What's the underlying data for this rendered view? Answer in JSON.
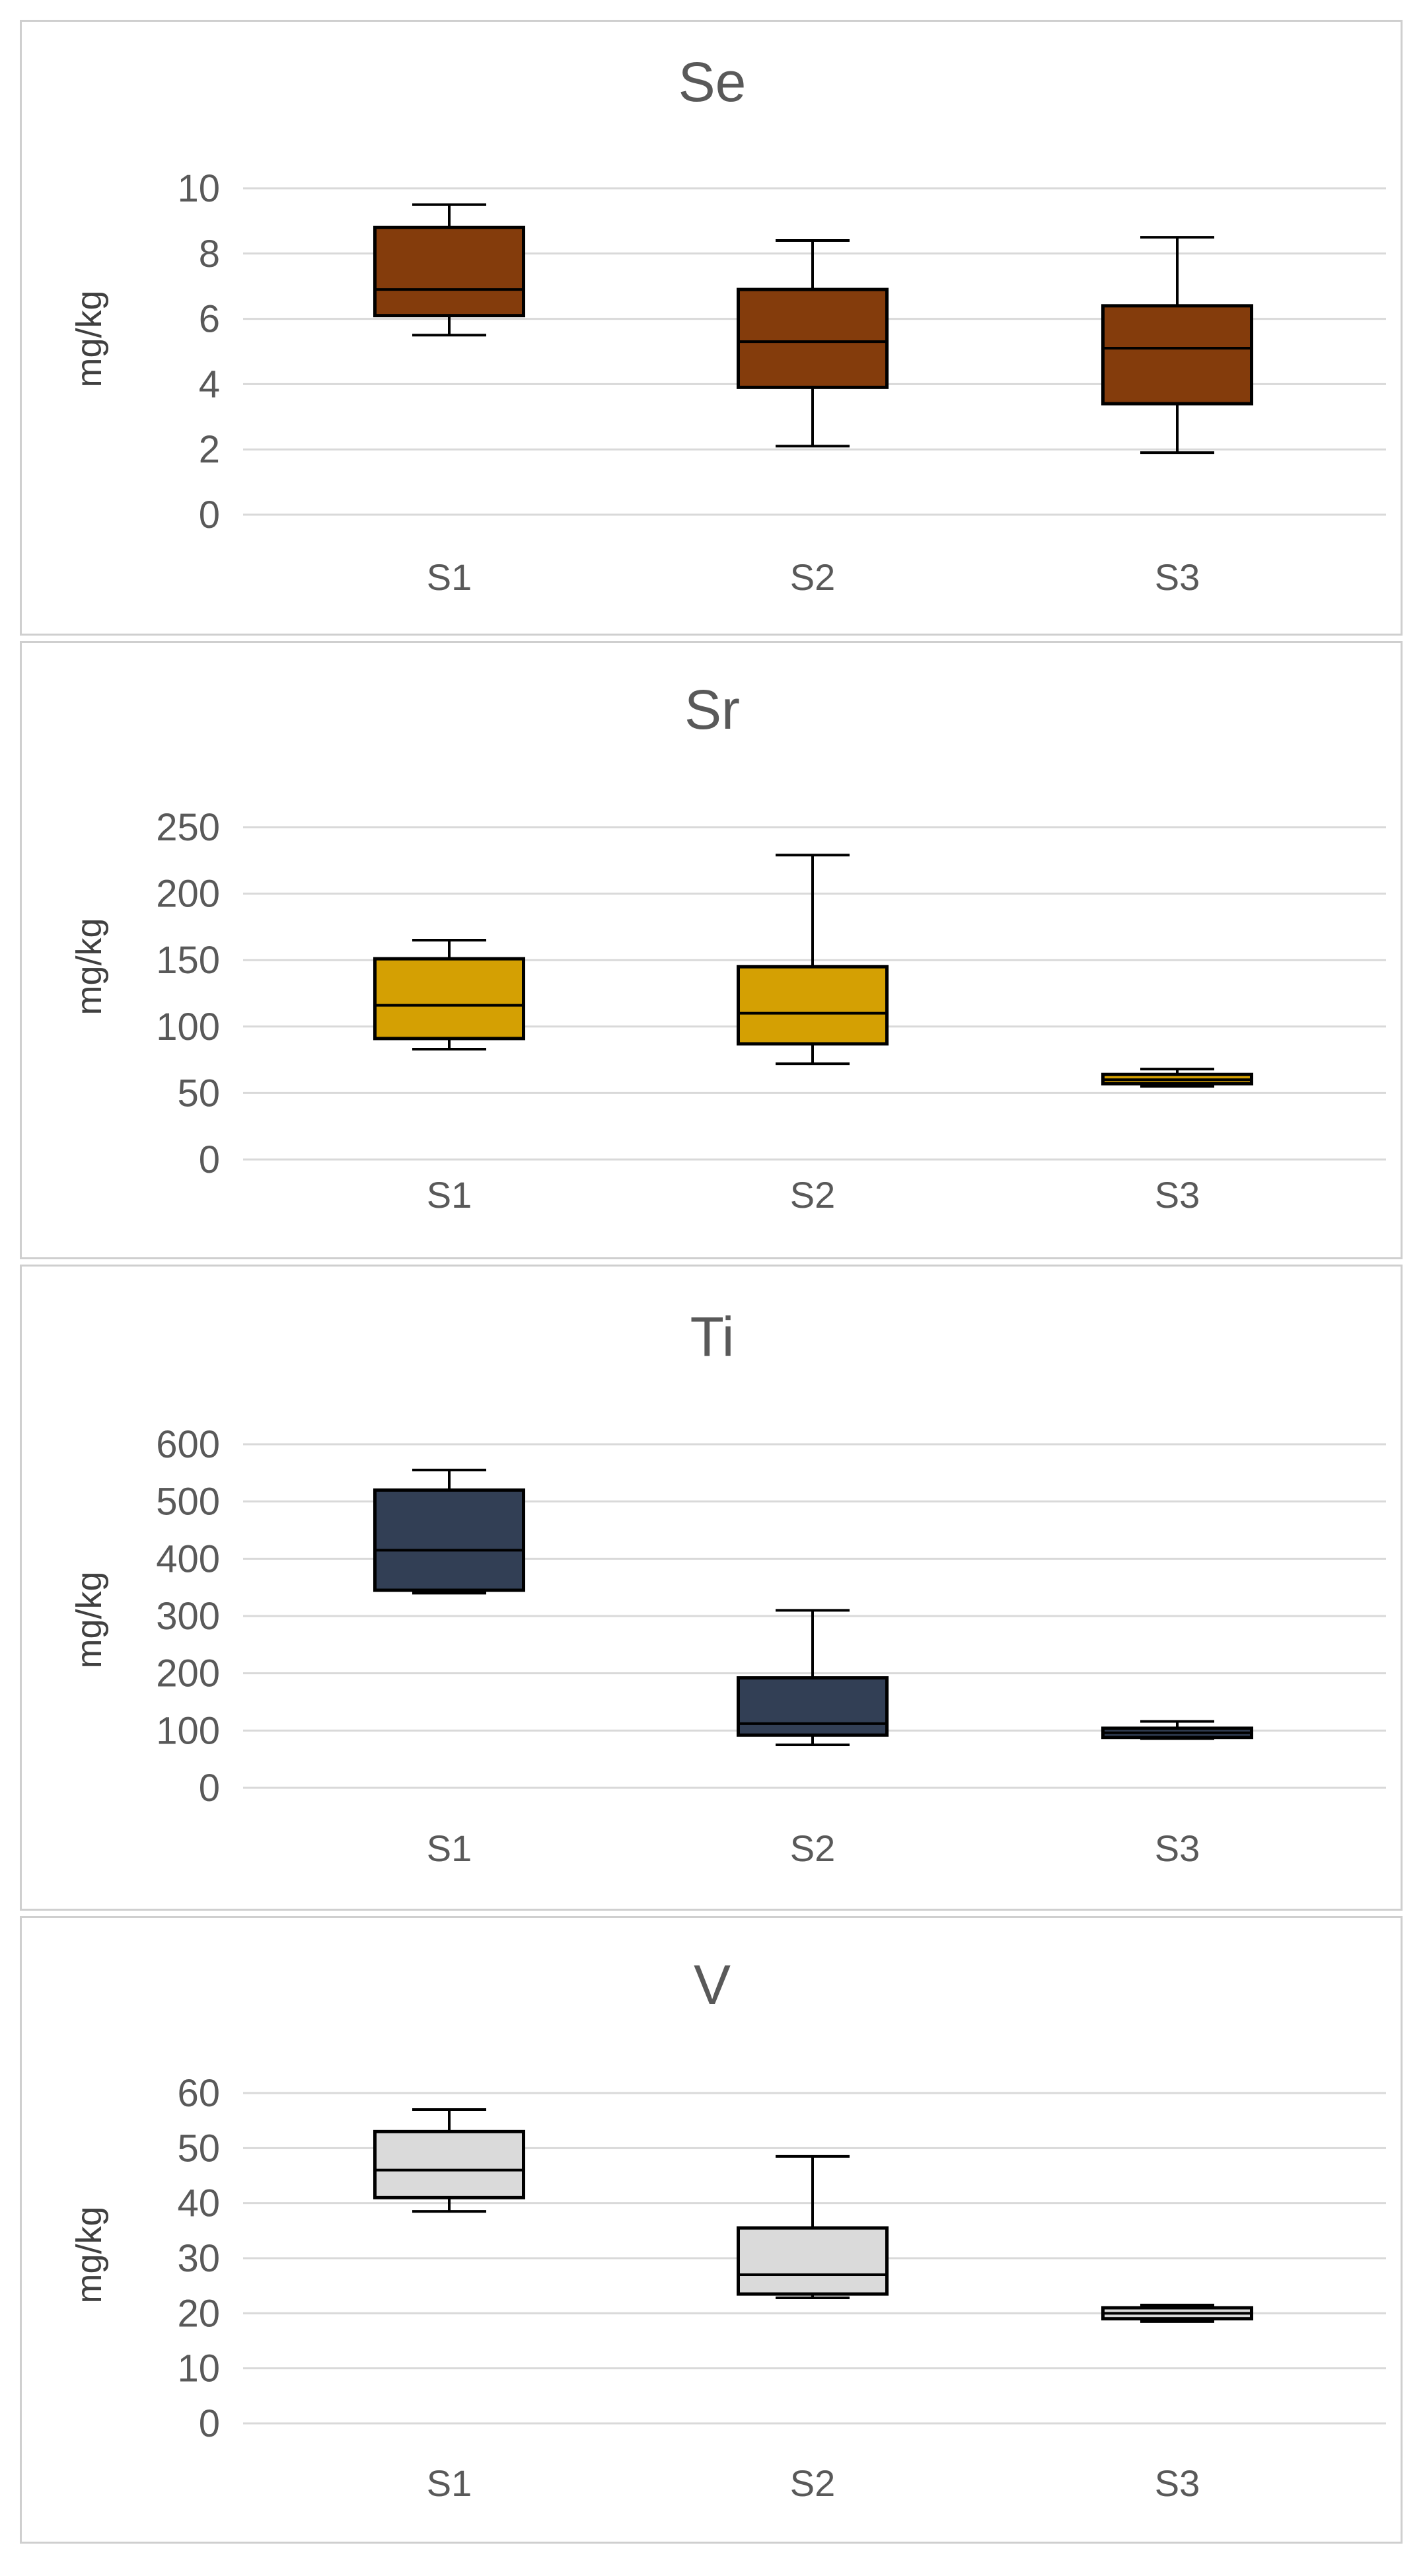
{
  "chart_data": [
    {
      "type": "boxplot",
      "title": "Se",
      "ylabel": "mg/kg",
      "ylim": [
        0,
        10
      ],
      "yticks": [
        "0",
        "2",
        "4",
        "6",
        "8",
        "10"
      ],
      "categories": [
        "S1",
        "S2",
        "S3"
      ],
      "color": "#843C0C",
      "boxes": [
        {
          "category": "S1",
          "min": 5.5,
          "q1": 6.1,
          "median": 6.9,
          "q3": 8.8,
          "max": 9.5
        },
        {
          "category": "S2",
          "min": 2.1,
          "q1": 3.9,
          "median": 5.3,
          "q3": 6.9,
          "max": 8.4
        },
        {
          "category": "S3",
          "min": 1.9,
          "q1": 3.4,
          "median": 5.1,
          "q3": 6.4,
          "max": 8.5
        }
      ],
      "grid": true
    },
    {
      "type": "boxplot",
      "title": "Sr",
      "ylabel": "mg/kg",
      "ylim": [
        0,
        250
      ],
      "yticks": [
        "0",
        "50",
        "100",
        "150",
        "200",
        "250"
      ],
      "categories": [
        "S1",
        "S2",
        "S3"
      ],
      "color": "#D4A003",
      "boxes": [
        {
          "category": "S1",
          "min": 83,
          "q1": 91,
          "median": 116,
          "q3": 151,
          "max": 165
        },
        {
          "category": "S2",
          "min": 72,
          "q1": 87,
          "median": 110,
          "q3": 145,
          "max": 229
        },
        {
          "category": "S3",
          "min": 55,
          "q1": 57,
          "median": 60,
          "q3": 64,
          "max": 68
        }
      ],
      "grid": true
    },
    {
      "type": "boxplot",
      "title": "Ti",
      "ylabel": "mg/kg",
      "ylim": [
        0,
        600
      ],
      "yticks": [
        "0",
        "100",
        "200",
        "300",
        "400",
        "500",
        "600"
      ],
      "categories": [
        "S1",
        "S2",
        "S3"
      ],
      "color": "#323F55",
      "boxes": [
        {
          "category": "S1",
          "min": 340,
          "q1": 345,
          "median": 415,
          "q3": 520,
          "max": 555
        },
        {
          "category": "S2",
          "min": 75,
          "q1": 92,
          "median": 112,
          "q3": 192,
          "max": 310
        },
        {
          "category": "S3",
          "min": 86,
          "q1": 88,
          "median": 96,
          "q3": 104,
          "max": 116
        }
      ],
      "grid": true
    },
    {
      "type": "boxplot",
      "title": "V",
      "ylabel": "mg/kg",
      "ylim": [
        0,
        60
      ],
      "yticks": [
        "0",
        "10",
        "20",
        "30",
        "40",
        "50",
        "60"
      ],
      "categories": [
        "S1",
        "S2",
        "S3"
      ],
      "color": "#DADADA",
      "boxes": [
        {
          "category": "S1",
          "min": 38.5,
          "q1": 41,
          "median": 46,
          "q3": 53,
          "max": 57
        },
        {
          "category": "S2",
          "min": 22.8,
          "q1": 23.5,
          "median": 27,
          "q3": 35.5,
          "max": 48.5
        },
        {
          "category": "S3",
          "min": 18.5,
          "q1": 19,
          "median": 20,
          "q3": 21,
          "max": 21.5
        }
      ],
      "grid": true
    }
  ]
}
